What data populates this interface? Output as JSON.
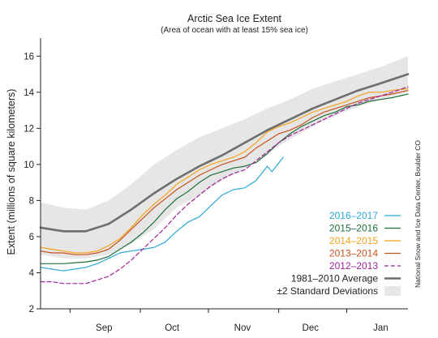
{
  "chart_data": {
    "type": "line",
    "title": "Arctic Sea Ice Extent",
    "subtitle": "(Area of ocean with at least 15% sea ice)",
    "xlabel": "",
    "ylabel": "Extent (millions of square kilometers)",
    "x_unit": "day of season (0 = Aug 18)",
    "xlim": [
      0,
      162
    ],
    "ylim": [
      2,
      17
    ],
    "yticks": [
      2,
      4,
      6,
      8,
      10,
      12,
      14,
      16
    ],
    "xtick_labels": [
      {
        "label": "Sep",
        "x": 28
      },
      {
        "label": "Oct",
        "x": 58
      },
      {
        "label": "Nov",
        "x": 89
      },
      {
        "label": "Dec",
        "x": 119
      },
      {
        "label": "Jan",
        "x": 150
      }
    ],
    "xtick_marks": [
      13,
      44,
      74,
      105,
      135
    ],
    "credit": "National Snow and Ice Data Center, Boulder CO",
    "legend_position": "bottom-right",
    "std_band": {
      "name": "±2 Standard Deviations",
      "color": "#e6e6e6",
      "x": [
        0,
        10,
        20,
        30,
        40,
        50,
        60,
        70,
        80,
        90,
        100,
        110,
        120,
        130,
        140,
        150,
        162
      ],
      "upper": [
        7.9,
        7.6,
        7.5,
        8.0,
        8.9,
        10.0,
        10.8,
        11.5,
        12.0,
        12.5,
        13.1,
        13.6,
        14.2,
        14.6,
        15.0,
        15.4,
        16.0
      ],
      "lower": [
        5.0,
        4.8,
        4.8,
        5.0,
        5.6,
        6.4,
        7.6,
        8.3,
        9.1,
        9.8,
        10.6,
        11.4,
        12.1,
        12.7,
        13.2,
        13.6,
        14.0
      ]
    },
    "series": [
      {
        "name": "1981–2010 Average",
        "color": "#6e6e6e",
        "width": 2.6,
        "dash": "",
        "x": [
          0,
          10,
          20,
          30,
          40,
          50,
          60,
          70,
          80,
          90,
          100,
          110,
          120,
          130,
          140,
          150,
          162
        ],
        "y": [
          6.5,
          6.3,
          6.3,
          6.7,
          7.5,
          8.4,
          9.2,
          9.9,
          10.5,
          11.2,
          11.9,
          12.5,
          13.1,
          13.6,
          14.1,
          14.5,
          15.0
        ]
      },
      {
        "name": "2016–2017",
        "color": "#29a9d6",
        "width": 1.2,
        "dash": "",
        "x": [
          0,
          5,
          10,
          15,
          20,
          25,
          30,
          35,
          40,
          45,
          50,
          55,
          60,
          65,
          70,
          75,
          80,
          85,
          90,
          95,
          100,
          102,
          107
        ],
        "y": [
          4.3,
          4.2,
          4.1,
          4.2,
          4.3,
          4.5,
          4.8,
          5.1,
          5.2,
          5.3,
          5.4,
          5.7,
          6.3,
          6.8,
          7.1,
          7.7,
          8.3,
          8.6,
          8.7,
          9.1,
          9.9,
          9.6,
          10.4
        ]
      },
      {
        "name": "2015–2016",
        "color": "#1e6e3a",
        "width": 1.2,
        "dash": "",
        "x": [
          0,
          10,
          20,
          25,
          30,
          35,
          40,
          45,
          50,
          55,
          60,
          65,
          70,
          75,
          80,
          85,
          90,
          95,
          100,
          105,
          110,
          115,
          120,
          125,
          130,
          135,
          140,
          145,
          150,
          155,
          162
        ],
        "y": [
          4.5,
          4.5,
          4.6,
          4.7,
          4.9,
          5.3,
          5.7,
          6.2,
          6.8,
          7.5,
          8.1,
          8.5,
          9.0,
          9.4,
          9.6,
          9.8,
          9.9,
          10.1,
          10.6,
          11.2,
          11.7,
          12.1,
          12.4,
          12.7,
          12.9,
          13.2,
          13.3,
          13.5,
          13.6,
          13.7,
          13.9
        ]
      },
      {
        "name": "2014–2015",
        "color": "#f6a21c",
        "width": 1.2,
        "dash": "",
        "x": [
          0,
          5,
          10,
          15,
          20,
          25,
          30,
          35,
          40,
          45,
          50,
          55,
          60,
          65,
          70,
          75,
          80,
          85,
          90,
          95,
          100,
          105,
          110,
          115,
          120,
          125,
          130,
          135,
          140,
          145,
          150,
          155,
          162
        ],
        "y": [
          5.4,
          5.3,
          5.2,
          5.1,
          5.1,
          5.2,
          5.5,
          5.9,
          6.5,
          7.2,
          7.8,
          8.3,
          8.9,
          9.3,
          9.7,
          10.0,
          10.2,
          10.4,
          10.7,
          11.2,
          11.8,
          12.1,
          12.3,
          12.6,
          12.9,
          13.1,
          13.3,
          13.5,
          13.8,
          14.0,
          14.0,
          14.1,
          14.2
        ]
      },
      {
        "name": "2013–2014",
        "color": "#c8521e",
        "width": 1.2,
        "dash": "",
        "x": [
          0,
          5,
          10,
          15,
          20,
          25,
          30,
          35,
          40,
          45,
          50,
          55,
          60,
          65,
          70,
          75,
          80,
          85,
          90,
          95,
          100,
          105,
          110,
          115,
          120,
          125,
          130,
          135,
          140,
          145,
          150,
          155,
          162
        ],
        "y": [
          5.2,
          5.1,
          5.1,
          5.0,
          5.0,
          5.1,
          5.3,
          5.8,
          6.4,
          7.0,
          7.6,
          8.1,
          8.6,
          9.0,
          9.4,
          9.7,
          10.0,
          10.2,
          10.4,
          10.9,
          11.3,
          11.7,
          11.9,
          12.2,
          12.6,
          12.9,
          13.1,
          13.3,
          13.5,
          13.7,
          13.8,
          13.9,
          14.1
        ]
      },
      {
        "name": "2012–2013",
        "color": "#a0229a",
        "width": 1.2,
        "dash": "5,3",
        "x": [
          0,
          5,
          10,
          15,
          20,
          25,
          30,
          35,
          40,
          45,
          50,
          55,
          60,
          65,
          70,
          75,
          80,
          85,
          90,
          95,
          100,
          105,
          110,
          115,
          120,
          125,
          130,
          135,
          140,
          145,
          150,
          155,
          162
        ],
        "y": [
          3.5,
          3.5,
          3.4,
          3.4,
          3.4,
          3.6,
          3.8,
          4.2,
          4.7,
          5.3,
          5.9,
          6.5,
          7.2,
          7.8,
          8.3,
          8.8,
          9.2,
          9.5,
          9.7,
          10.2,
          10.7,
          11.2,
          11.6,
          11.9,
          12.2,
          12.5,
          12.8,
          13.1,
          13.4,
          13.6,
          13.8,
          14.0,
          14.3
        ]
      }
    ],
    "legend": [
      {
        "label": "2016–2017",
        "color": "#29a9d6",
        "kind": "line"
      },
      {
        "label": "2015–2016",
        "color": "#1e6e3a",
        "kind": "line"
      },
      {
        "label": "2014–2015",
        "color": "#f6a21c",
        "kind": "line"
      },
      {
        "label": "2013–2014",
        "color": "#c8521e",
        "kind": "line"
      },
      {
        "label": "2012–2013",
        "color": "#a0229a",
        "kind": "dash"
      },
      {
        "label": "1981–2010 Average",
        "color": "#333333",
        "kind": "thick"
      },
      {
        "label": "±2 Standard Deviations",
        "color": "#333333",
        "kind": "band"
      }
    ]
  }
}
